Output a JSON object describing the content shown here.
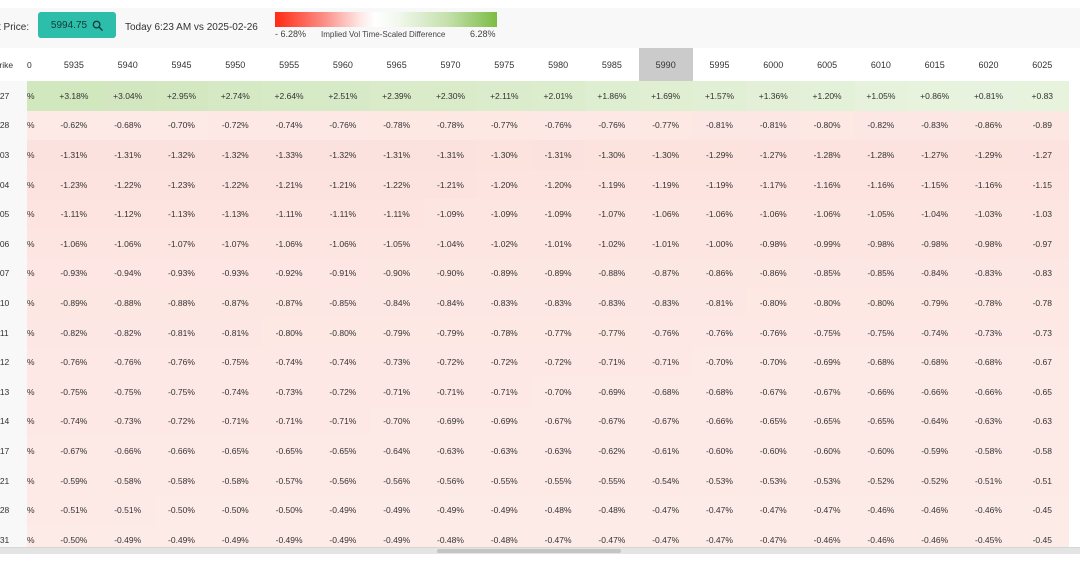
{
  "toolbar": {
    "price_label": "t Price:",
    "price_value": "5994.75",
    "search_icon": "search-icon",
    "compare_text": "Today 6:23 AM vs 2025-02-26"
  },
  "legend": {
    "min_label": "- 6.28%",
    "title": "Implied Vol Time-Scaled Difference",
    "max_label": "6.28%",
    "min_color": "#ff2a14",
    "max_color": "#7cbc45"
  },
  "grid": {
    "strike_label": "trike",
    "partial_header": "0",
    "highlighted_strike": "5990",
    "strikes": [
      "5935",
      "5940",
      "5945",
      "5950",
      "5955",
      "5960",
      "5965",
      "5970",
      "5975",
      "5980",
      "5985",
      "5990",
      "5995",
      "6000",
      "6005",
      "6010",
      "6015",
      "6020",
      "6025"
    ],
    "rows": [
      {
        "label": "-27",
        "partial": "%",
        "values": [
          "+3.18%",
          "+3.04%",
          "+2.95%",
          "+2.74%",
          "+2.64%",
          "+2.51%",
          "+2.39%",
          "+2.30%",
          "+2.11%",
          "+2.01%",
          "+1.86%",
          "+1.69%",
          "+1.57%",
          "+1.36%",
          "+1.20%",
          "+1.05%",
          "+0.86%",
          "+0.81%",
          "+0.83"
        ]
      },
      {
        "label": "-28",
        "partial": "%",
        "values": [
          "-0.62%",
          "-0.68%",
          "-0.70%",
          "-0.72%",
          "-0.74%",
          "-0.76%",
          "-0.78%",
          "-0.78%",
          "-0.77%",
          "-0.76%",
          "-0.76%",
          "-0.77%",
          "-0.81%",
          "-0.81%",
          "-0.80%",
          "-0.82%",
          "-0.83%",
          "-0.86%",
          "-0.89"
        ]
      },
      {
        "label": "-03",
        "partial": "%",
        "values": [
          "-1.31%",
          "-1.31%",
          "-1.32%",
          "-1.32%",
          "-1.33%",
          "-1.32%",
          "-1.31%",
          "-1.31%",
          "-1.30%",
          "-1.31%",
          "-1.30%",
          "-1.30%",
          "-1.29%",
          "-1.27%",
          "-1.28%",
          "-1.28%",
          "-1.27%",
          "-1.29%",
          "-1.27"
        ]
      },
      {
        "label": "-04",
        "partial": "%",
        "values": [
          "-1.23%",
          "-1.22%",
          "-1.23%",
          "-1.22%",
          "-1.21%",
          "-1.21%",
          "-1.22%",
          "-1.21%",
          "-1.20%",
          "-1.20%",
          "-1.19%",
          "-1.19%",
          "-1.19%",
          "-1.17%",
          "-1.16%",
          "-1.16%",
          "-1.15%",
          "-1.16%",
          "-1.15"
        ]
      },
      {
        "label": "-05",
        "partial": "%",
        "values": [
          "-1.11%",
          "-1.12%",
          "-1.13%",
          "-1.13%",
          "-1.11%",
          "-1.11%",
          "-1.11%",
          "-1.09%",
          "-1.09%",
          "-1.09%",
          "-1.07%",
          "-1.06%",
          "-1.06%",
          "-1.06%",
          "-1.06%",
          "-1.05%",
          "-1.04%",
          "-1.03%",
          "-1.03"
        ]
      },
      {
        "label": "-06",
        "partial": "%",
        "values": [
          "-1.06%",
          "-1.06%",
          "-1.07%",
          "-1.07%",
          "-1.06%",
          "-1.06%",
          "-1.05%",
          "-1.04%",
          "-1.02%",
          "-1.01%",
          "-1.02%",
          "-1.01%",
          "-1.00%",
          "-0.98%",
          "-0.99%",
          "-0.98%",
          "-0.98%",
          "-0.98%",
          "-0.97"
        ]
      },
      {
        "label": "-07",
        "partial": "%",
        "values": [
          "-0.93%",
          "-0.94%",
          "-0.93%",
          "-0.93%",
          "-0.92%",
          "-0.91%",
          "-0.90%",
          "-0.90%",
          "-0.89%",
          "-0.89%",
          "-0.88%",
          "-0.87%",
          "-0.86%",
          "-0.86%",
          "-0.85%",
          "-0.85%",
          "-0.84%",
          "-0.83%",
          "-0.83"
        ]
      },
      {
        "label": "-10",
        "partial": "%",
        "values": [
          "-0.89%",
          "-0.88%",
          "-0.88%",
          "-0.87%",
          "-0.87%",
          "-0.85%",
          "-0.84%",
          "-0.84%",
          "-0.83%",
          "-0.83%",
          "-0.83%",
          "-0.83%",
          "-0.81%",
          "-0.80%",
          "-0.80%",
          "-0.80%",
          "-0.79%",
          "-0.78%",
          "-0.78"
        ]
      },
      {
        "label": "-11",
        "partial": "%",
        "values": [
          "-0.82%",
          "-0.82%",
          "-0.81%",
          "-0.81%",
          "-0.80%",
          "-0.80%",
          "-0.79%",
          "-0.79%",
          "-0.78%",
          "-0.77%",
          "-0.77%",
          "-0.76%",
          "-0.76%",
          "-0.76%",
          "-0.75%",
          "-0.75%",
          "-0.74%",
          "-0.73%",
          "-0.73"
        ]
      },
      {
        "label": "-12",
        "partial": "%",
        "values": [
          "-0.76%",
          "-0.76%",
          "-0.76%",
          "-0.75%",
          "-0.74%",
          "-0.74%",
          "-0.73%",
          "-0.72%",
          "-0.72%",
          "-0.72%",
          "-0.71%",
          "-0.71%",
          "-0.70%",
          "-0.70%",
          "-0.69%",
          "-0.68%",
          "-0.68%",
          "-0.68%",
          "-0.67"
        ]
      },
      {
        "label": "-13",
        "partial": "%",
        "values": [
          "-0.75%",
          "-0.75%",
          "-0.75%",
          "-0.74%",
          "-0.73%",
          "-0.72%",
          "-0.71%",
          "-0.71%",
          "-0.71%",
          "-0.70%",
          "-0.69%",
          "-0.68%",
          "-0.68%",
          "-0.67%",
          "-0.67%",
          "-0.66%",
          "-0.66%",
          "-0.66%",
          "-0.65"
        ]
      },
      {
        "label": "-14",
        "partial": "%",
        "values": [
          "-0.74%",
          "-0.73%",
          "-0.72%",
          "-0.71%",
          "-0.71%",
          "-0.71%",
          "-0.70%",
          "-0.69%",
          "-0.69%",
          "-0.67%",
          "-0.67%",
          "-0.67%",
          "-0.66%",
          "-0.65%",
          "-0.65%",
          "-0.65%",
          "-0.64%",
          "-0.63%",
          "-0.63"
        ]
      },
      {
        "label": "-17",
        "partial": "%",
        "values": [
          "-0.67%",
          "-0.66%",
          "-0.66%",
          "-0.65%",
          "-0.65%",
          "-0.65%",
          "-0.64%",
          "-0.63%",
          "-0.63%",
          "-0.63%",
          "-0.62%",
          "-0.61%",
          "-0.60%",
          "-0.60%",
          "-0.60%",
          "-0.60%",
          "-0.59%",
          "-0.58%",
          "-0.58"
        ]
      },
      {
        "label": "-21",
        "partial": "%",
        "values": [
          "-0.59%",
          "-0.58%",
          "-0.58%",
          "-0.58%",
          "-0.57%",
          "-0.56%",
          "-0.56%",
          "-0.56%",
          "-0.55%",
          "-0.55%",
          "-0.55%",
          "-0.54%",
          "-0.53%",
          "-0.53%",
          "-0.53%",
          "-0.52%",
          "-0.52%",
          "-0.51%",
          "-0.51"
        ]
      },
      {
        "label": "-28",
        "partial": "%",
        "values": [
          "-0.51%",
          "-0.51%",
          "-0.50%",
          "-0.50%",
          "-0.50%",
          "-0.49%",
          "-0.49%",
          "-0.49%",
          "-0.49%",
          "-0.48%",
          "-0.48%",
          "-0.47%",
          "-0.47%",
          "-0.47%",
          "-0.47%",
          "-0.46%",
          "-0.46%",
          "-0.46%",
          "-0.45"
        ]
      },
      {
        "label": "-31",
        "partial": "%",
        "values": [
          "-0.50%",
          "-0.49%",
          "-0.49%",
          "-0.49%",
          "-0.49%",
          "-0.49%",
          "-0.49%",
          "-0.48%",
          "-0.48%",
          "-0.47%",
          "-0.47%",
          "-0.47%",
          "-0.47%",
          "-0.47%",
          "-0.46%",
          "-0.46%",
          "-0.46%",
          "-0.45%",
          "-0.45"
        ]
      }
    ]
  },
  "colors": {
    "accent": "#2dbdab",
    "highlight_column": "#cbcbcc",
    "positive": "#7cbc45",
    "negative": "#ff2a14"
  }
}
